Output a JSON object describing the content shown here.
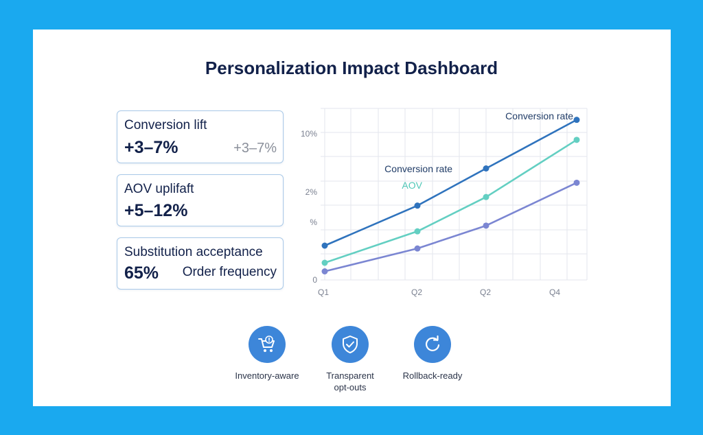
{
  "title": "Personalization Impact Dashboard",
  "kpis": [
    {
      "label": "Conversion lift",
      "value": "+3–7%",
      "aside": "+3–7%"
    },
    {
      "label": "AOV uplifaft",
      "value": "+5–12%",
      "aside": ""
    },
    {
      "label": "Substitution acceptance",
      "value": "65%",
      "aside": "Order frequency"
    }
  ],
  "features": [
    {
      "label": "Inventory-aware",
      "icon": "cart-icon"
    },
    {
      "label": "Transparent opt-outs",
      "icon": "shield-check-icon"
    },
    {
      "label": "Rollback-ready",
      "icon": "refresh-icon"
    }
  ],
  "colors": {
    "accent": "#3d86d9",
    "background": "#1aa9ef"
  },
  "chart_data": {
    "type": "line",
    "title": "",
    "x": [
      "Q1",
      "Q2",
      "Q2",
      "Q4"
    ],
    "y_ticks": [
      "0",
      "%",
      "2%",
      "10%"
    ],
    "grid": true,
    "series": [
      {
        "name": "Conversion rate",
        "color": "#2f73bd",
        "values": [
          1.2,
          2.6,
          3.9,
          5.6
        ]
      },
      {
        "name": "AOV",
        "color": "#63cfc2",
        "values": [
          0.6,
          1.7,
          2.9,
          4.9
        ]
      },
      {
        "name": "",
        "color": "#7b86d2",
        "values": [
          0.3,
          1.1,
          1.9,
          3.4
        ]
      }
    ],
    "annotations": [
      "Conversion rate",
      "Conversion rate",
      "AOV"
    ],
    "ylim": [
      0,
      6
    ]
  }
}
